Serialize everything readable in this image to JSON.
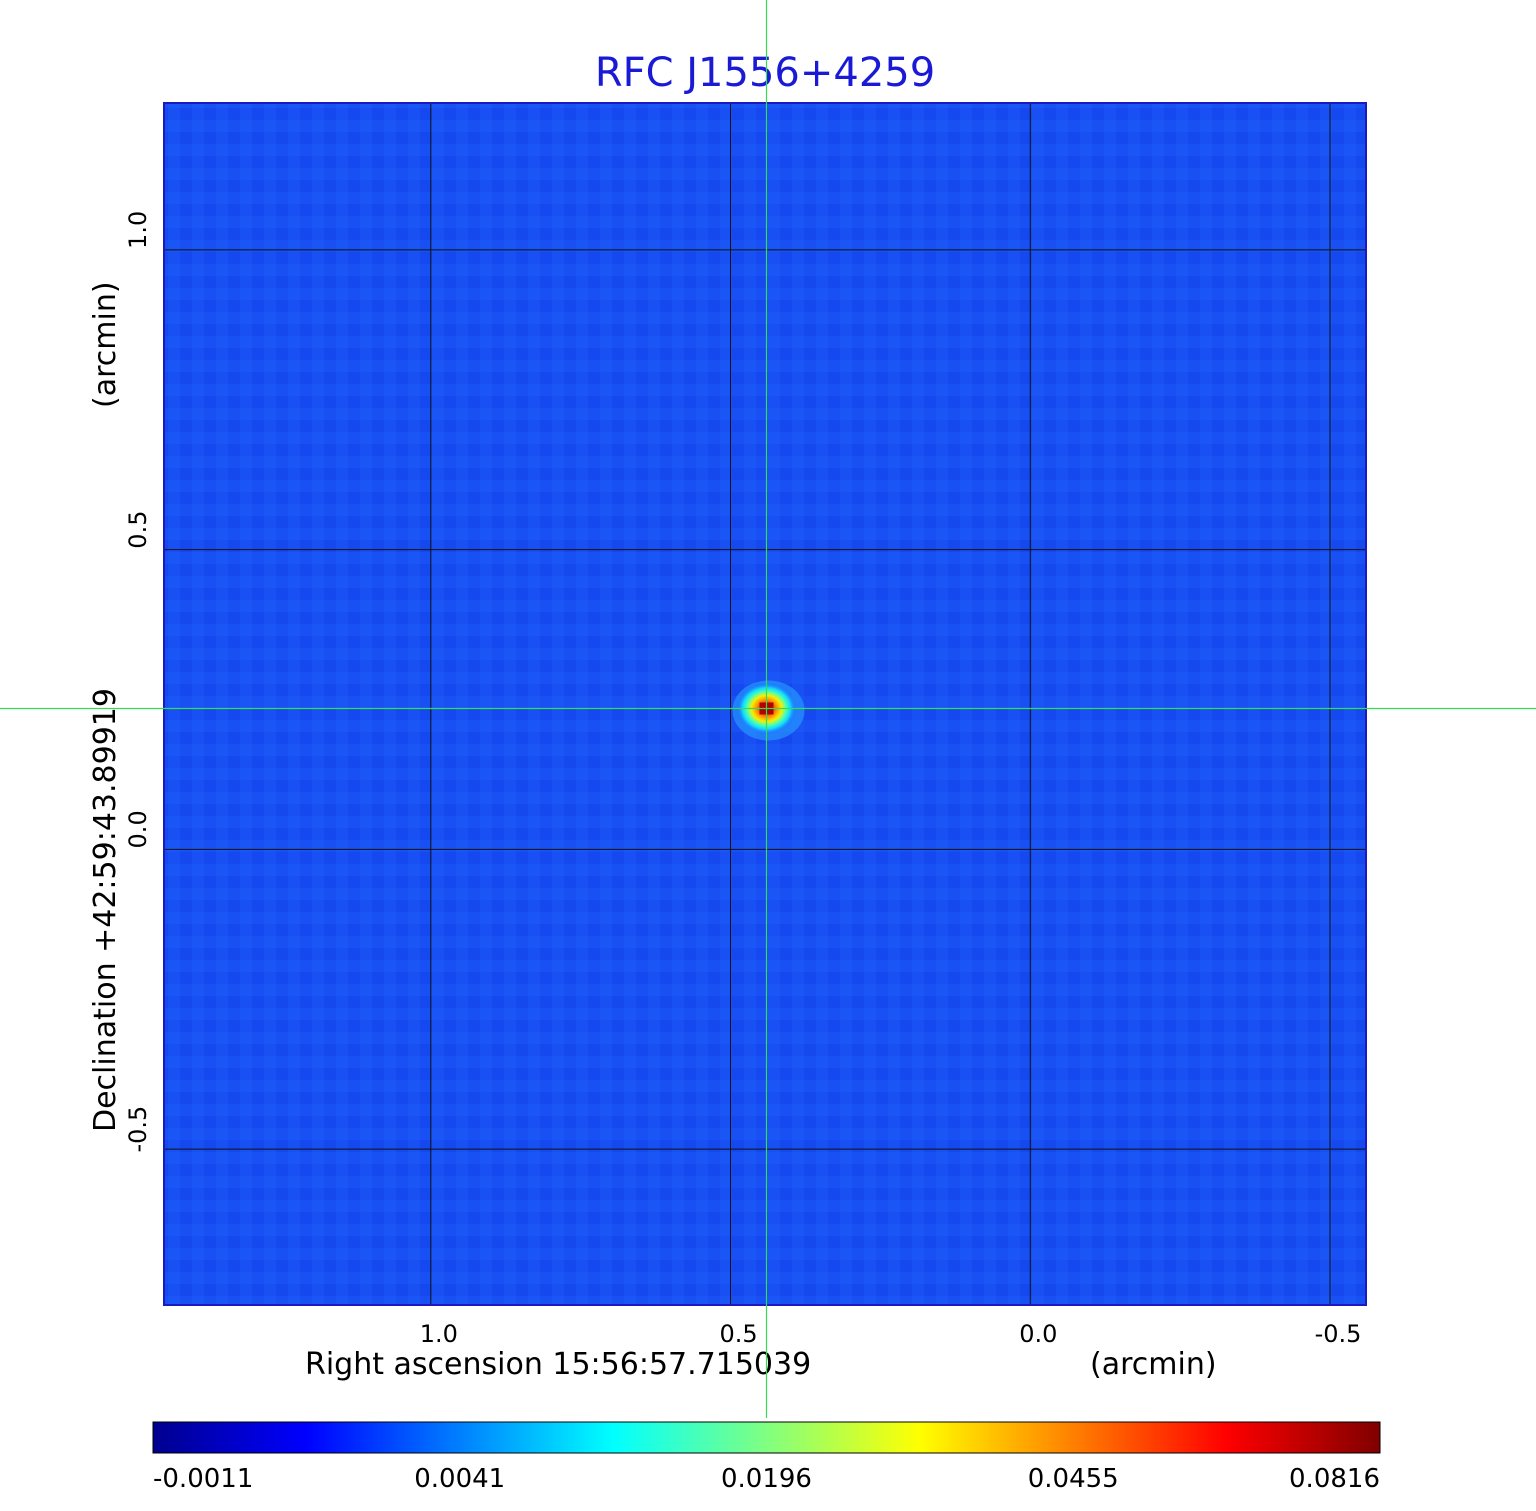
{
  "chart_data": {
    "type": "heatmap",
    "title": "RFC J1556+4259",
    "xlabel": "Right ascension  15:56:57.715039",
    "xunit": "(arcmin)",
    "ylabel": "Declination  +42:59:43.89919",
    "yunit": "(arcmin)",
    "x_ticks": [
      "1.0",
      "0.5",
      "0.0",
      "-0.5"
    ],
    "x_tick_values": [
      1.0,
      0.5,
      0.0,
      -0.5
    ],
    "y_ticks": [
      "1.0",
      "0.5",
      "0.0",
      "-0.5"
    ],
    "y_tick_values": [
      1.0,
      0.5,
      0.0,
      -0.5
    ],
    "xlim": [
      1.445,
      -0.56
    ],
    "ylim": [
      -0.76,
      1.245
    ],
    "grid": true,
    "crosshair": {
      "x": 0.44,
      "y": 0.235,
      "color": "#33dd55"
    },
    "source_peak": {
      "x": 0.44,
      "y": 0.235,
      "value": 0.0816
    },
    "background_value": 0.0008,
    "colormap": "jet",
    "colorbar_ticks": [
      "-0.0011",
      "0.0041",
      "0.0196",
      "0.0455",
      "0.0816"
    ],
    "colorbar_range": [
      -0.0011,
      0.0816
    ]
  }
}
